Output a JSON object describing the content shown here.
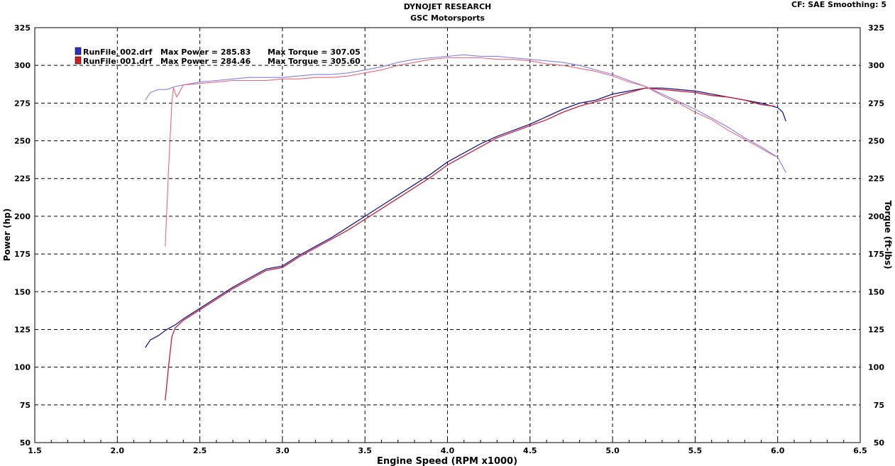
{
  "header": {
    "title": "DYNOJET RESEARCH",
    "subtitle": "GSC Motorsports",
    "cf_label": "CF: SAE  Smoothing: 5"
  },
  "legend": [
    {
      "file": "RunFile_002.drf",
      "max_power_text": "Max Power = 285.83",
      "max_torque_text": "Max Torque = 307.05",
      "color": "#2020a0"
    },
    {
      "file": "RunFile_001.drf",
      "max_power_text": "Max Power = 284.46",
      "max_torque_text": "Max Torque = 305.60",
      "color": "#c00000"
    }
  ],
  "colors": {
    "power_002": "#1a1a8c",
    "torque_002": "#8080ee",
    "power_001": "#cc1a33",
    "torque_001": "#ee6677",
    "grid": "#000000",
    "background": "#ffffff"
  },
  "chart_data": {
    "type": "line",
    "title": "DYNOJET RESEARCH",
    "subtitle": "GSC Motorsports",
    "xlabel": "Engine Speed (RPM x1000)",
    "ylabel": "Power (hp)",
    "y2label": "Torque (ft-lbs)",
    "xlim": [
      1.5,
      6.5
    ],
    "ylim": [
      50,
      325
    ],
    "y2lim": [
      50,
      325
    ],
    "x_ticks": [
      "1.5",
      "2.0",
      "2.5",
      "3.0",
      "3.5",
      "4.0",
      "4.5",
      "5.0",
      "5.5",
      "6.0",
      "6.5"
    ],
    "y_ticks": [
      "50",
      "75",
      "100",
      "125",
      "150",
      "175",
      "200",
      "225",
      "250",
      "275",
      "300",
      "325"
    ],
    "grid": true,
    "legend_position": "top-left",
    "series": [
      {
        "run": "RunFile_002.drf",
        "kind": "power",
        "axis": "left",
        "x": [
          2.17,
          2.2,
          2.25,
          2.3,
          2.35,
          2.4,
          2.5,
          2.6,
          2.7,
          2.8,
          2.9,
          3.0,
          3.1,
          3.2,
          3.3,
          3.4,
          3.5,
          3.6,
          3.7,
          3.8,
          3.9,
          4.0,
          4.1,
          4.2,
          4.3,
          4.4,
          4.5,
          4.6,
          4.7,
          4.8,
          4.9,
          5.0,
          5.1,
          5.2,
          5.3,
          5.4,
          5.5,
          5.6,
          5.7,
          5.8,
          5.9,
          6.0,
          6.03,
          6.05
        ],
        "y": [
          113,
          118,
          121,
          125,
          128,
          132,
          139,
          146,
          153,
          159,
          165,
          167,
          174,
          180,
          186,
          193,
          200,
          207,
          214,
          221,
          228,
          236,
          242,
          248,
          253,
          257,
          261,
          266,
          271,
          275,
          277,
          281,
          283,
          285,
          285,
          284,
          283,
          281,
          279,
          277,
          275,
          272,
          269,
          263
        ]
      },
      {
        "run": "RunFile_001.drf",
        "kind": "power",
        "axis": "left",
        "x": [
          2.29,
          2.31,
          2.33,
          2.35,
          2.4,
          2.5,
          2.6,
          2.7,
          2.8,
          2.9,
          3.0,
          3.1,
          3.2,
          3.3,
          3.4,
          3.5,
          3.6,
          3.7,
          3.8,
          3.9,
          4.0,
          4.1,
          4.2,
          4.3,
          4.4,
          4.5,
          4.6,
          4.7,
          4.8,
          4.9,
          5.0,
          5.1,
          5.2,
          5.3,
          5.4,
          5.5,
          5.6,
          5.7,
          5.8,
          5.9,
          5.98
        ],
        "y": [
          78,
          100,
          120,
          126,
          131,
          138,
          145,
          152,
          158,
          164,
          166,
          173,
          179,
          185,
          191,
          198,
          205,
          212,
          219,
          226,
          234,
          240,
          246,
          252,
          256,
          260,
          264,
          269,
          273,
          276,
          279,
          282,
          285,
          284,
          283,
          282,
          280,
          279,
          277,
          274,
          273
        ]
      },
      {
        "run": "RunFile_002.drf",
        "kind": "torque",
        "axis": "right",
        "x": [
          2.17,
          2.2,
          2.25,
          2.3,
          2.35,
          2.4,
          2.5,
          2.6,
          2.7,
          2.8,
          2.9,
          3.0,
          3.1,
          3.2,
          3.3,
          3.4,
          3.5,
          3.6,
          3.7,
          3.8,
          3.9,
          4.0,
          4.1,
          4.2,
          4.3,
          4.4,
          4.5,
          4.6,
          4.7,
          4.8,
          4.9,
          5.0,
          5.1,
          5.2,
          5.3,
          5.4,
          5.5,
          5.6,
          5.7,
          5.8,
          5.9,
          6.0,
          6.05
        ],
        "y": [
          277,
          282,
          284,
          284,
          286,
          287,
          289,
          290,
          291,
          292,
          292,
          292,
          293,
          294,
          294,
          295,
          297,
          299,
          302,
          304,
          305,
          306,
          307,
          306,
          306,
          305,
          304,
          303,
          302,
          300,
          297,
          294,
          290,
          286,
          281,
          276,
          271,
          265,
          259,
          252,
          246,
          239,
          229
        ]
      },
      {
        "run": "RunFile_001.drf",
        "kind": "torque",
        "axis": "right",
        "x": [
          2.29,
          2.31,
          2.33,
          2.34,
          2.36,
          2.38,
          2.4,
          2.5,
          2.6,
          2.7,
          2.8,
          2.9,
          3.0,
          3.1,
          3.2,
          3.3,
          3.4,
          3.5,
          3.6,
          3.7,
          3.8,
          3.9,
          4.0,
          4.1,
          4.2,
          4.3,
          4.4,
          4.5,
          4.6,
          4.7,
          4.8,
          4.9,
          5.0,
          5.1,
          5.2,
          5.3,
          5.4,
          5.5,
          5.6,
          5.7,
          5.8,
          5.9,
          5.98
        ],
        "y": [
          180,
          230,
          275,
          285,
          279,
          283,
          287,
          288,
          289,
          290,
          290,
          290,
          291,
          291,
          292,
          292,
          293,
          295,
          297,
          300,
          302,
          304,
          305,
          305,
          305,
          304,
          304,
          303,
          301,
          300,
          298,
          296,
          293,
          289,
          286,
          280,
          275,
          269,
          264,
          257,
          251,
          245,
          240
        ]
      }
    ]
  }
}
